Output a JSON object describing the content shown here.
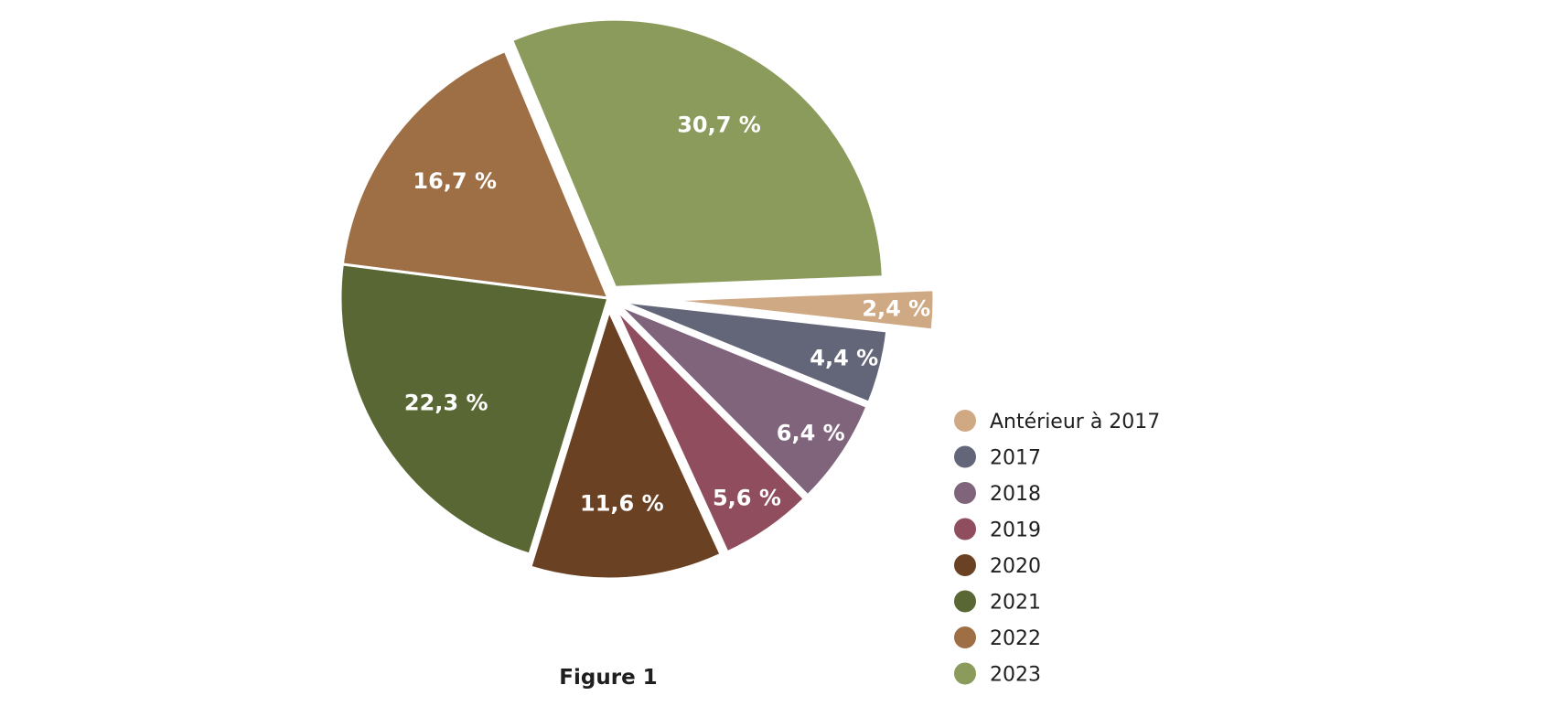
{
  "chart_data": {
    "type": "pie",
    "caption": "Figure 1",
    "slices": [
      {
        "name": "Antérieur à 2017",
        "value": 2.4,
        "label": "2,4 %",
        "color": "#cfa984",
        "exploded": true
      },
      {
        "name": "2017",
        "value": 4.4,
        "label": "4,4 %",
        "color": "#636579",
        "exploded": true
      },
      {
        "name": "2018",
        "value": 6.4,
        "label": "6,4 %",
        "color": "#7f647c",
        "exploded": true
      },
      {
        "name": "2019",
        "value": 5.6,
        "label": "5,6 %",
        "color": "#8f4d5e",
        "exploded": true
      },
      {
        "name": "2020",
        "value": 11.6,
        "label": "11,6 %",
        "color": "#6b4124",
        "exploded": true
      },
      {
        "name": "2021",
        "value": 22.3,
        "label": "22,3 %",
        "color": "#586733",
        "exploded": false
      },
      {
        "name": "2022",
        "value": 16.7,
        "label": "16,7 %",
        "color": "#9e6f45",
        "exploded": false
      },
      {
        "name": "2023",
        "value": 30.7,
        "label": "30,7 %",
        "color": "#8b9b5c",
        "exploded": true
      }
    ],
    "legend": {
      "position": "right",
      "entries": [
        "Antérieur à 2017",
        "2017",
        "2018",
        "2019",
        "2020",
        "2021",
        "2022",
        "2023"
      ]
    }
  }
}
